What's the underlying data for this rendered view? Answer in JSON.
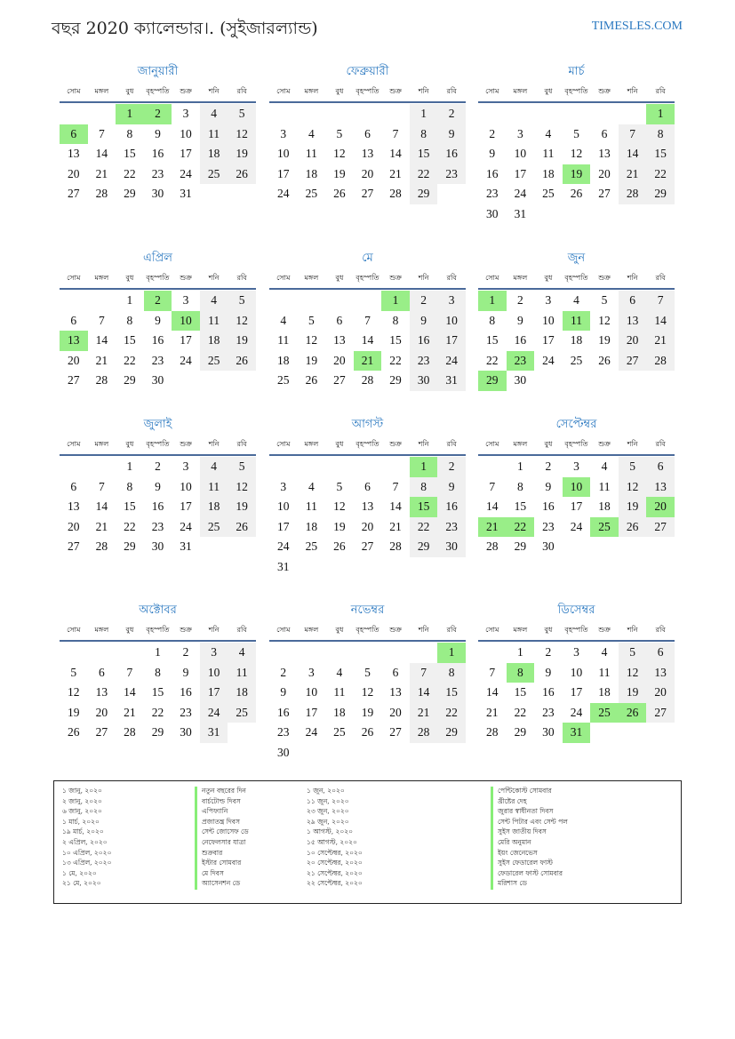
{
  "header": {
    "title": "বছর 2020 ক্যালেন্ডার।. (সুইজারল্যান্ড)",
    "site": "TIMESLES.COM"
  },
  "colors": {
    "holiday": "#99ee88",
    "weekend": "#f0f0f0",
    "accent": "#2a78c0"
  },
  "weekdays": [
    "সোম",
    "মঙ্গল",
    "বুধ",
    "বৃহস্পতি",
    "শুক্র",
    "শনি",
    "রবি"
  ],
  "months": [
    {
      "name": "জানুয়ারী",
      "first_weekday": 2,
      "days": 31,
      "holidays": [
        1,
        2,
        6
      ]
    },
    {
      "name": "ফেব্রুয়ারী",
      "first_weekday": 5,
      "days": 29,
      "holidays": []
    },
    {
      "name": "মার্চ",
      "first_weekday": 6,
      "days": 31,
      "holidays": [
        1,
        19
      ]
    },
    {
      "name": "এপ্রিল",
      "first_weekday": 2,
      "days": 30,
      "holidays": [
        2,
        10,
        13
      ]
    },
    {
      "name": "মে",
      "first_weekday": 4,
      "days": 31,
      "holidays": [
        1,
        21
      ]
    },
    {
      "name": "জুন",
      "first_weekday": 0,
      "days": 30,
      "holidays": [
        1,
        11,
        23,
        29
      ]
    },
    {
      "name": "জুলাই",
      "first_weekday": 2,
      "days": 31,
      "holidays": []
    },
    {
      "name": "আগস্ট",
      "first_weekday": 5,
      "days": 31,
      "holidays": [
        1,
        15
      ]
    },
    {
      "name": "সেপ্টেম্বর",
      "first_weekday": 1,
      "days": 30,
      "holidays": [
        10,
        20,
        21,
        22,
        25
      ]
    },
    {
      "name": "অক্টোবর",
      "first_weekday": 3,
      "days": 31,
      "holidays": []
    },
    {
      "name": "নভেম্বর",
      "first_weekday": 6,
      "days": 30,
      "holidays": [
        1
      ]
    },
    {
      "name": "ডিসেম্বর",
      "first_weekday": 1,
      "days": 31,
      "holidays": [
        8,
        25,
        26,
        31
      ]
    }
  ],
  "legend": [
    {
      "date": "১ জানু, ২০২০",
      "name": "নতুন বছরের দিন"
    },
    {
      "date": "২ জানু, ২০২০",
      "name": "বার্চটোল্ড দিবস"
    },
    {
      "date": "৬ জানু, ২০২০",
      "name": "এপিফ্যানি"
    },
    {
      "date": "১ মার্চ, ২০২০",
      "name": "প্রজাতন্ত্র দিবস"
    },
    {
      "date": "১৯ মার্চ, ২০২০",
      "name": "সেন্ট জোসেফ ডে"
    },
    {
      "date": "২ এপ্রিল, ২০২০",
      "name": "নেফেলসার যাত্রা"
    },
    {
      "date": "১০ এপ্রিল, ২০২০",
      "name": "শুক্রবার"
    },
    {
      "date": "১৩ এপ্রিল, ২০২০",
      "name": "ইস্টার সোমবার"
    },
    {
      "date": "১ মে, ২০২০",
      "name": "মে দিবস"
    },
    {
      "date": "২১ মে, ২০২০",
      "name": "অ্যাসেনশন ডে"
    },
    {
      "date": "১ জুন, ২০২০",
      "name": "পেন্টিকোস্ট সোমবার"
    },
    {
      "date": "১১ জুন, ২০২০",
      "name": "খ্রীষ্টের দেহ"
    },
    {
      "date": "২৩ জুন, ২০২০",
      "name": "জুরার স্বাধীনতা দিবস"
    },
    {
      "date": "২৯ জুন, ২০২০",
      "name": "সেন্ট পিটার এবং সেন্ট পল"
    },
    {
      "date": "১ আগস্ট, ২০২০",
      "name": "সুইস জাতীয় দিবস"
    },
    {
      "date": "১৫ আগস্ট, ২০২০",
      "name": "মেরি অনুমান"
    },
    {
      "date": "১০ সেপ্টেম্বর, ২০২০",
      "name": "ইয়ং জেনেভেস"
    },
    {
      "date": "২০ সেপ্টেম্বর, ২০২০",
      "name": "সুইস ফেডারেল ফাস্ট"
    },
    {
      "date": "২১ সেপ্টেম্বর, ২০২০",
      "name": "ফেডারেল ফাস্ট সোমবার"
    },
    {
      "date": "২২ সেপ্টেম্বর, ২০২০",
      "name": "মরিশাস ডে"
    }
  ]
}
